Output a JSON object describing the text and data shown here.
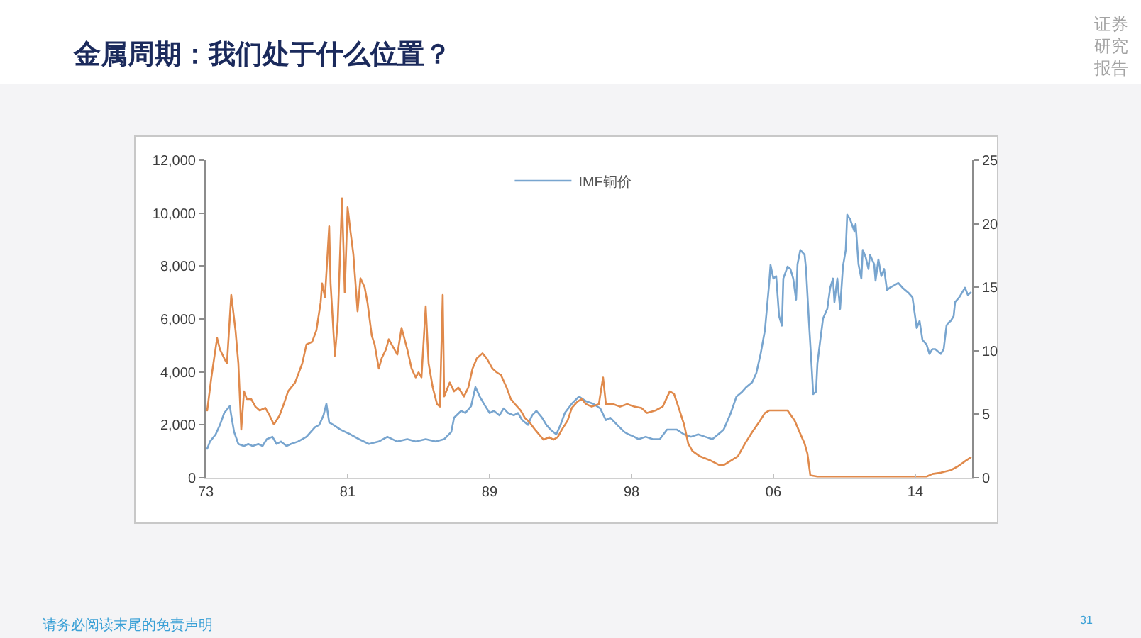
{
  "chart_data": {
    "type": "line",
    "title": "金属周期：我们处于什么位置？",
    "series": [
      {
        "name": "IMF铜价",
        "color": "#78a5cf",
        "x": [
          "1973-02",
          "1973-04",
          "1973-08",
          "1973-11",
          "1974-02",
          "1974-06",
          "1974-07",
          "1974-09",
          "1974-12",
          "1975-04",
          "1975-07",
          "1975-10",
          "1976-02",
          "1976-05",
          "1976-08",
          "1976-12",
          "1977-03",
          "1977-06",
          "1977-10",
          "1978-01",
          "1978-06",
          "1978-12",
          "1979-06",
          "1979-09",
          "1979-12",
          "1980-02",
          "1980-04",
          "1980-07",
          "1980-12",
          "1981-07",
          "1982-01",
          "1982-08",
          "1983-03",
          "1983-09",
          "1984-04",
          "1984-11",
          "1985-05",
          "1985-12",
          "1986-07",
          "1987-01",
          "1987-06",
          "1987-08",
          "1988-01",
          "1988-04",
          "1988-08",
          "1988-11",
          "1989-02",
          "1989-06",
          "1989-09",
          "1989-12",
          "1990-04",
          "1990-07",
          "1990-10",
          "1991-02",
          "1991-05",
          "1991-08",
          "1991-12",
          "1992-03",
          "1992-06",
          "1992-10",
          "1993-01",
          "1993-04",
          "1993-08",
          "1993-11",
          "1994-02",
          "1994-07",
          "1994-12",
          "1995-05",
          "1995-10",
          "1996-03",
          "1996-07",
          "1996-10",
          "1997-03",
          "1997-08",
          "1997-11",
          "1998-03",
          "1998-06",
          "1998-11",
          "1999-04",
          "1999-09",
          "2000-02",
          "2000-09",
          "2001-02",
          "2001-07",
          "2001-12",
          "2002-05",
          "2002-10",
          "2003-02",
          "2003-06",
          "2003-11",
          "2004-03",
          "2004-07",
          "2004-10",
          "2005-02",
          "2005-05",
          "2005-08",
          "2005-11",
          "2006-02",
          "2006-03",
          "2006-05",
          "2006-07",
          "2006-09",
          "2006-11",
          "2006-12",
          "2007-03",
          "2007-05",
          "2007-07",
          "2007-09",
          "2007-10",
          "2007-12",
          "2008-03",
          "2008-04",
          "2008-06",
          "2008-08",
          "2008-09",
          "2008-11",
          "2008-12",
          "2009-02",
          "2009-04",
          "2009-07",
          "2009-09",
          "2009-11",
          "2009-12",
          "2010-02",
          "2010-04",
          "2010-06",
          "2010-08",
          "2010-09",
          "2010-11",
          "2011-02",
          "2011-03",
          "2011-05",
          "2011-07",
          "2011-08",
          "2011-10",
          "2011-12",
          "2012-01",
          "2012-04",
          "2012-05",
          "2012-07",
          "2012-09",
          "2012-11",
          "2013-01",
          "2013-03",
          "2013-06",
          "2013-09",
          "2013-12",
          "2014-04",
          "2014-07",
          "2014-10",
          "2014-12",
          "2015-02",
          "2015-05",
          "2015-07",
          "2015-09",
          "2015-11",
          "2016-03",
          "2016-05",
          "2016-07",
          "2016-08",
          "2016-10",
          "2016-12",
          "2017-01",
          "2017-04",
          "2017-06",
          "2017-08",
          "2017-10",
          "2017-12"
        ],
        "values": [
          1100,
          1370,
          1640,
          2000,
          2450,
          2710,
          2360,
          1730,
          1280,
          1200,
          1280,
          1200,
          1280,
          1200,
          1460,
          1550,
          1280,
          1370,
          1200,
          1280,
          1370,
          1550,
          1910,
          2000,
          2360,
          2800,
          2090,
          2000,
          1820,
          1640,
          1460,
          1280,
          1370,
          1550,
          1370,
          1460,
          1370,
          1460,
          1370,
          1460,
          1730,
          2270,
          2530,
          2450,
          2710,
          3430,
          3070,
          2710,
          2450,
          2530,
          2360,
          2620,
          2450,
          2360,
          2450,
          2180,
          2000,
          2360,
          2530,
          2270,
          2000,
          1820,
          1640,
          2000,
          2450,
          2800,
          3070,
          2890,
          2800,
          2620,
          2180,
          2270,
          2000,
          1730,
          1640,
          1550,
          1460,
          1550,
          1460,
          1460,
          1820,
          1820,
          1640,
          1550,
          1640,
          1550,
          1460,
          1640,
          1820,
          2450,
          3070,
          3250,
          3430,
          3610,
          3960,
          4680,
          5570,
          7360,
          8040,
          7530,
          7620,
          6110,
          5750,
          7530,
          7980,
          7890,
          7530,
          6730,
          8070,
          8610,
          8430,
          7890,
          5930,
          4140,
          3160,
          3250,
          4320,
          5210,
          6020,
          6380,
          7180,
          7530,
          6640,
          7530,
          6380,
          7980,
          8610,
          9940,
          9770,
          9320,
          9590,
          8070,
          7530,
          8610,
          8340,
          7890,
          8430,
          8070,
          7450,
          8250,
          7620,
          7890,
          7090,
          7180,
          7270,
          7360,
          7180,
          7000,
          6820,
          5660,
          5930,
          5210,
          5030,
          4680,
          4860,
          4860,
          4680,
          4860,
          5750,
          5840,
          5930,
          6110,
          6640,
          6820,
          7000,
          7180,
          6910,
          7000
        ]
      },
      {
        "color": "#e08a4c",
        "axis": "y2",
        "x": [
          "1973-02",
          "1973-05",
          "1973-09",
          "1973-11",
          "1974-02",
          "1974-04",
          "1974-07",
          "1974-10",
          "1974-12",
          "1975-02",
          "1975-04",
          "1975-06",
          "1975-09",
          "1975-12",
          "1976-03",
          "1976-07",
          "1976-10",
          "1977-01",
          "1977-05",
          "1977-08",
          "1977-11",
          "1978-04",
          "1978-09",
          "1978-12",
          "1979-04",
          "1979-07",
          "1979-10",
          "1979-11",
          "1980-01",
          "1980-04",
          "1980-05",
          "1980-08",
          "1980-10",
          "1981-01",
          "1981-03",
          "1981-05",
          "1981-07",
          "1981-09",
          "1981-12",
          "1982-02",
          "1982-05",
          "1982-07",
          "1982-10",
          "1982-12",
          "1983-03",
          "1983-05",
          "1983-08",
          "1983-10",
          "1983-12",
          "1984-04",
          "1984-07",
          "1984-11",
          "1985-02",
          "1985-05",
          "1985-07",
          "1985-09",
          "1985-12",
          "1986-02",
          "1986-05",
          "1986-08",
          "1986-10",
          "1986-12",
          "1987-01",
          "1987-05",
          "1987-08",
          "1987-11",
          "1988-03",
          "1988-06",
          "1988-09",
          "1988-12",
          "1989-04",
          "1989-07",
          "1989-11",
          "1990-02",
          "1990-05",
          "1990-09",
          "1990-12",
          "1991-03",
          "1991-07",
          "1991-10",
          "1992-01",
          "1992-05",
          "1992-08",
          "1992-11",
          "1993-03",
          "1993-06",
          "1993-09",
          "1993-12",
          "1994-04",
          "1994-07",
          "1994-11",
          "1995-02",
          "1995-05",
          "1995-09",
          "1996-02",
          "1996-05",
          "1996-07",
          "1996-12",
          "1997-05",
          "1997-10",
          "1998-03",
          "1998-08",
          "1998-12",
          "1999-06",
          "1999-11",
          "2000-04",
          "2000-07",
          "2000-10",
          "2001-02",
          "2001-05",
          "2001-08",
          "2002-01",
          "2002-08",
          "2003-03",
          "2003-06",
          "2004-04",
          "2004-09",
          "2005-02",
          "2005-07",
          "2005-11",
          "2006-02",
          "2007-03",
          "2007-08",
          "2008-01",
          "2008-03",
          "2008-05",
          "2008-07",
          "2008-12",
          "2010-12",
          "2013-09",
          "2015-05",
          "2015-09",
          "2016-03",
          "2016-10",
          "2017-03",
          "2017-08",
          "2017-12"
        ],
        "values": [
          5.3,
          7.9,
          11.0,
          10.1,
          9.4,
          9.0,
          14.4,
          11.6,
          9.0,
          3.8,
          6.8,
          6.2,
          6.2,
          5.6,
          5.3,
          5.5,
          4.9,
          4.2,
          4.9,
          5.8,
          6.8,
          7.5,
          9.0,
          10.5,
          10.7,
          11.6,
          13.8,
          15.3,
          14.2,
          19.8,
          15.3,
          9.6,
          12.3,
          22.0,
          14.6,
          21.3,
          19.4,
          17.6,
          13.1,
          15.7,
          15.0,
          13.8,
          11.2,
          10.5,
          8.6,
          9.4,
          10.1,
          10.9,
          10.5,
          9.7,
          11.8,
          10.1,
          8.6,
          7.9,
          8.3,
          7.9,
          13.5,
          9.0,
          7.1,
          5.8,
          5.6,
          14.4,
          6.4,
          7.5,
          6.8,
          7.1,
          6.4,
          7.1,
          8.6,
          9.4,
          9.8,
          9.4,
          8.6,
          8.3,
          8.1,
          7.1,
          6.2,
          5.8,
          5.3,
          4.7,
          4.4,
          3.8,
          3.4,
          3.0,
          3.2,
          3.0,
          3.2,
          3.8,
          4.5,
          5.5,
          6.0,
          6.2,
          5.8,
          5.6,
          5.8,
          7.9,
          5.8,
          5.8,
          5.6,
          5.8,
          5.6,
          5.5,
          5.1,
          5.3,
          5.6,
          6.8,
          6.6,
          5.6,
          4.2,
          2.7,
          2.1,
          1.7,
          1.4,
          1.0,
          1.0,
          1.7,
          2.7,
          3.6,
          4.4,
          5.1,
          5.3,
          5.3,
          4.5,
          3.2,
          2.7,
          1.9,
          0.2,
          0.1,
          0.1,
          0.1,
          0.1,
          0.3,
          0.4,
          0.6,
          0.9,
          1.3,
          1.6
        ]
      }
    ],
    "xlim": [
      "1973-01",
      "2018-01"
    ],
    "xticks": [
      {
        "value": "1973-01",
        "label": "73"
      },
      {
        "value": "1981-05",
        "label": "81"
      },
      {
        "value": "1989-09",
        "label": "89"
      },
      {
        "value": "1998-01",
        "label": "98"
      },
      {
        "value": "2006-05",
        "label": "06"
      },
      {
        "value": "2014-09",
        "label": "14"
      }
    ],
    "ylim": [
      0,
      12000
    ],
    "yticks": [
      0,
      {
        "value": 2000,
        "label": "2,000"
      },
      {
        "value": 4000,
        "label": "4,000"
      },
      {
        "value": 6000,
        "label": "6,000"
      },
      {
        "value": 8000,
        "label": "8,000"
      },
      {
        "value": 10000,
        "label": "10,000"
      },
      {
        "value": 12000,
        "label": "12,000"
      }
    ],
    "y2lim": [
      0,
      25
    ],
    "y2ticks": [
      0,
      5,
      10,
      15,
      20,
      25
    ],
    "grid": false,
    "legend": "top",
    "annotations": [
      "证券研究报告",
      "请务必阅读末尾的免责声明",
      "31"
    ]
  }
}
